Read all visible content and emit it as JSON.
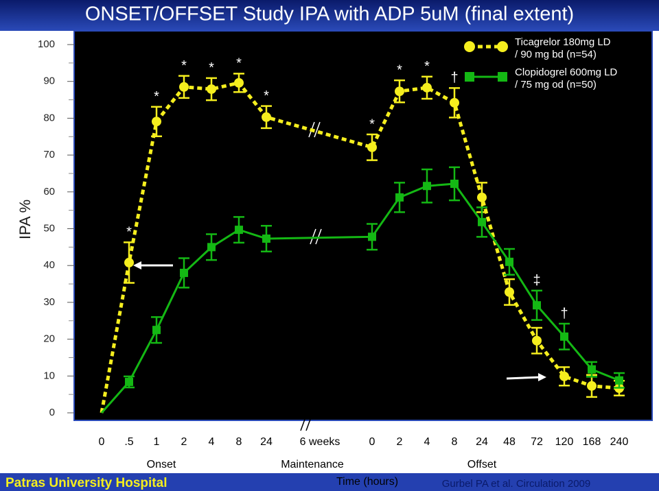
{
  "chart_data": {
    "type": "line",
    "title": "ONSET/OFFSET Study IPA with ADP 5uM (final extent)",
    "y_label": "IPA %",
    "x_label": "Time (hours)",
    "categories": [
      "0",
      ".5",
      "1",
      "2",
      "4",
      "8",
      "24",
      "0",
      "2",
      "4",
      "8",
      "24",
      "48",
      "72",
      "120",
      "168",
      "240"
    ],
    "x_break_label": "6 weeks",
    "phases": [
      "Onset",
      "Maintenance",
      "Offset"
    ],
    "ylim": [
      0,
      100
    ],
    "yticks": [
      0,
      10,
      20,
      30,
      40,
      50,
      60,
      70,
      80,
      90,
      100
    ],
    "legend": "top-right",
    "series": [
      {
        "name": "Ticagrelor  180mg LD / 90 mg bd (n=54)",
        "color": "#f5ee1e",
        "marker": "circle",
        "dashed": true,
        "values": [
          0,
          40.8,
          79.1,
          88.5,
          87.9,
          89.6,
          80.3,
          72.1,
          87.3,
          88.3,
          84.2,
          58.5,
          32.8,
          19.6,
          9.9,
          7.3,
          6.7
        ],
        "errors": [
          0,
          5.5,
          4,
          3,
          3,
          2.5,
          3,
          3.5,
          3,
          3,
          4,
          4,
          3.5,
          3.5,
          2.5,
          3,
          2
        ],
        "markers": [
          null,
          "*",
          "*",
          "*",
          "*",
          "*",
          "*",
          "*",
          "*",
          "*",
          "†",
          null,
          null,
          null,
          null,
          null,
          null
        ]
      },
      {
        "name": "Clopidogrel 600mg LD / 75 mg od (n=50)",
        "color": "#14b814",
        "marker": "square",
        "dashed": false,
        "values": [
          0,
          8.4,
          22.5,
          38,
          45,
          49.7,
          47.3,
          47.8,
          58.5,
          61.6,
          62.2,
          51.8,
          41,
          29.2,
          20.7,
          11.8,
          8.8
        ],
        "errors": [
          0,
          1.5,
          3.5,
          4,
          3.5,
          3.5,
          3.5,
          3.5,
          4,
          4.5,
          4.5,
          4,
          3.5,
          4,
          3.5,
          2,
          2
        ],
        "markers": [
          null,
          null,
          null,
          null,
          null,
          null,
          null,
          null,
          null,
          null,
          null,
          null,
          null,
          "‡",
          "†",
          null,
          null
        ]
      }
    ],
    "footer_left": "Patras University Hospital",
    "citation": "Gurbel PA et al. Circulation 2009"
  }
}
